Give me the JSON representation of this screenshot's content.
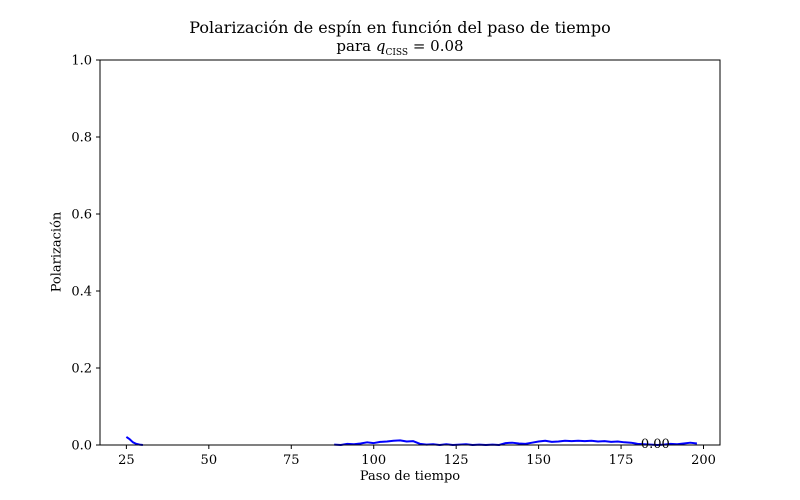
{
  "chart_data": {
    "type": "line",
    "title_line1": "Polarización de espín en función del paso de tiempo",
    "title_line2_prefix": "para ",
    "title_line2_var": "q",
    "title_line2_sub": "CISS",
    "title_line2_suffix": " = 0.08",
    "xlabel": "Paso de tiempo",
    "ylabel": "Polarización",
    "xlim": [
      17,
      205
    ],
    "ylim": [
      0.0,
      1.0
    ],
    "xticks": [
      25,
      50,
      75,
      100,
      125,
      150,
      175,
      200
    ],
    "yticks": [
      0.0,
      0.2,
      0.4,
      0.6,
      0.8,
      1.0
    ],
    "ytick_labels": [
      "0.0",
      "0.2",
      "0.4",
      "0.6",
      "0.8",
      "1.0"
    ],
    "grid": false,
    "annotation": {
      "text": "0.00",
      "x": 181,
      "y": 0.0
    },
    "series": [
      {
        "color": "#0000ff",
        "segments": [
          {
            "x": [
              25,
              26,
              27,
              28,
              29,
              30
            ],
            "y": [
              0.021,
              0.015,
              0.007,
              0.003,
              0.001,
              0.0
            ]
          },
          {
            "x": [
              88,
              90,
              92,
              94,
              96,
              98,
              100,
              102,
              104,
              106,
              108,
              110,
              112,
              114,
              116,
              118,
              120,
              122,
              124,
              126,
              128,
              130,
              132,
              134,
              136,
              138,
              140,
              142,
              144,
              146,
              148,
              150,
              152,
              154,
              156,
              158,
              160,
              162,
              164,
              166,
              168,
              170,
              172,
              174,
              176,
              178,
              180,
              182,
              184,
              186,
              188,
              190,
              192,
              194,
              196,
              198
            ],
            "y": [
              0.001,
              0.0,
              0.003,
              0.002,
              0.004,
              0.007,
              0.005,
              0.008,
              0.009,
              0.011,
              0.012,
              0.009,
              0.01,
              0.003,
              0.001,
              0.002,
              0.0,
              0.002,
              0.0,
              0.001,
              0.002,
              0.0,
              0.001,
              0.0,
              0.001,
              0.0,
              0.005,
              0.006,
              0.004,
              0.003,
              0.006,
              0.009,
              0.011,
              0.008,
              0.009,
              0.011,
              0.01,
              0.011,
              0.01,
              0.011,
              0.009,
              0.01,
              0.008,
              0.009,
              0.007,
              0.006,
              0.003,
              0.002,
              0.001,
              0.0,
              0.001,
              0.003,
              0.002,
              0.004,
              0.006,
              0.004
            ]
          }
        ]
      }
    ]
  }
}
